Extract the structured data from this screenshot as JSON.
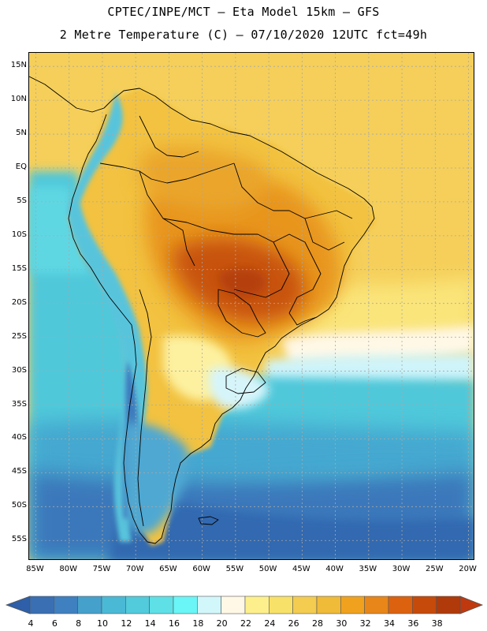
{
  "header": {
    "line1": "CPTEC/INPE/MCT –  Eta Model 15km – GFS",
    "line2": "2 Metre Temperature (C) – 07/10/2020 12UTC fct=49h"
  },
  "map": {
    "extent": {
      "lon_min": -86,
      "lon_max": -19,
      "lat_min": -58,
      "lat_max": 17
    },
    "lat_ticks": [
      {
        "value": 15,
        "label": "15N"
      },
      {
        "value": 10,
        "label": "10N"
      },
      {
        "value": 5,
        "label": "5N"
      },
      {
        "value": 0,
        "label": "EQ"
      },
      {
        "value": -5,
        "label": "5S"
      },
      {
        "value": -10,
        "label": "10S"
      },
      {
        "value": -15,
        "label": "15S"
      },
      {
        "value": -20,
        "label": "20S"
      },
      {
        "value": -25,
        "label": "25S"
      },
      {
        "value": -30,
        "label": "30S"
      },
      {
        "value": -35,
        "label": "35S"
      },
      {
        "value": -40,
        "label": "40S"
      },
      {
        "value": -45,
        "label": "45S"
      },
      {
        "value": -50,
        "label": "50S"
      },
      {
        "value": -55,
        "label": "55S"
      }
    ],
    "lon_ticks": [
      {
        "value": -85,
        "label": "85W"
      },
      {
        "value": -80,
        "label": "80W"
      },
      {
        "value": -75,
        "label": "75W"
      },
      {
        "value": -70,
        "label": "70W"
      },
      {
        "value": -65,
        "label": "65W"
      },
      {
        "value": -60,
        "label": "60W"
      },
      {
        "value": -55,
        "label": "55W"
      },
      {
        "value": -50,
        "label": "50W"
      },
      {
        "value": -45,
        "label": "45W"
      },
      {
        "value": -40,
        "label": "40W"
      },
      {
        "value": -35,
        "label": "35W"
      },
      {
        "value": -30,
        "label": "30W"
      },
      {
        "value": -25,
        "label": "25W"
      },
      {
        "value": -20,
        "label": "20W"
      }
    ]
  },
  "colorbar": {
    "labels": [
      "4",
      "6",
      "8",
      "10",
      "12",
      "14",
      "16",
      "18",
      "20",
      "22",
      "24",
      "26",
      "28",
      "30",
      "32",
      "34",
      "36",
      "38"
    ],
    "low_color": "#2e5fa8",
    "high_color": "#c0390e",
    "colors": [
      "#3a6fb3",
      "#3f80c0",
      "#45a0cc",
      "#4ab9d6",
      "#52cbdc",
      "#5ee0e6",
      "#6af5f7",
      "#d2f7fb",
      "#fff8e6",
      "#fdf08c",
      "#f8e168",
      "#f3cc50",
      "#efbb38",
      "#f0a21e",
      "#e8861a",
      "#dc6210",
      "#c64a0a",
      "#b03a0a"
    ]
  }
}
